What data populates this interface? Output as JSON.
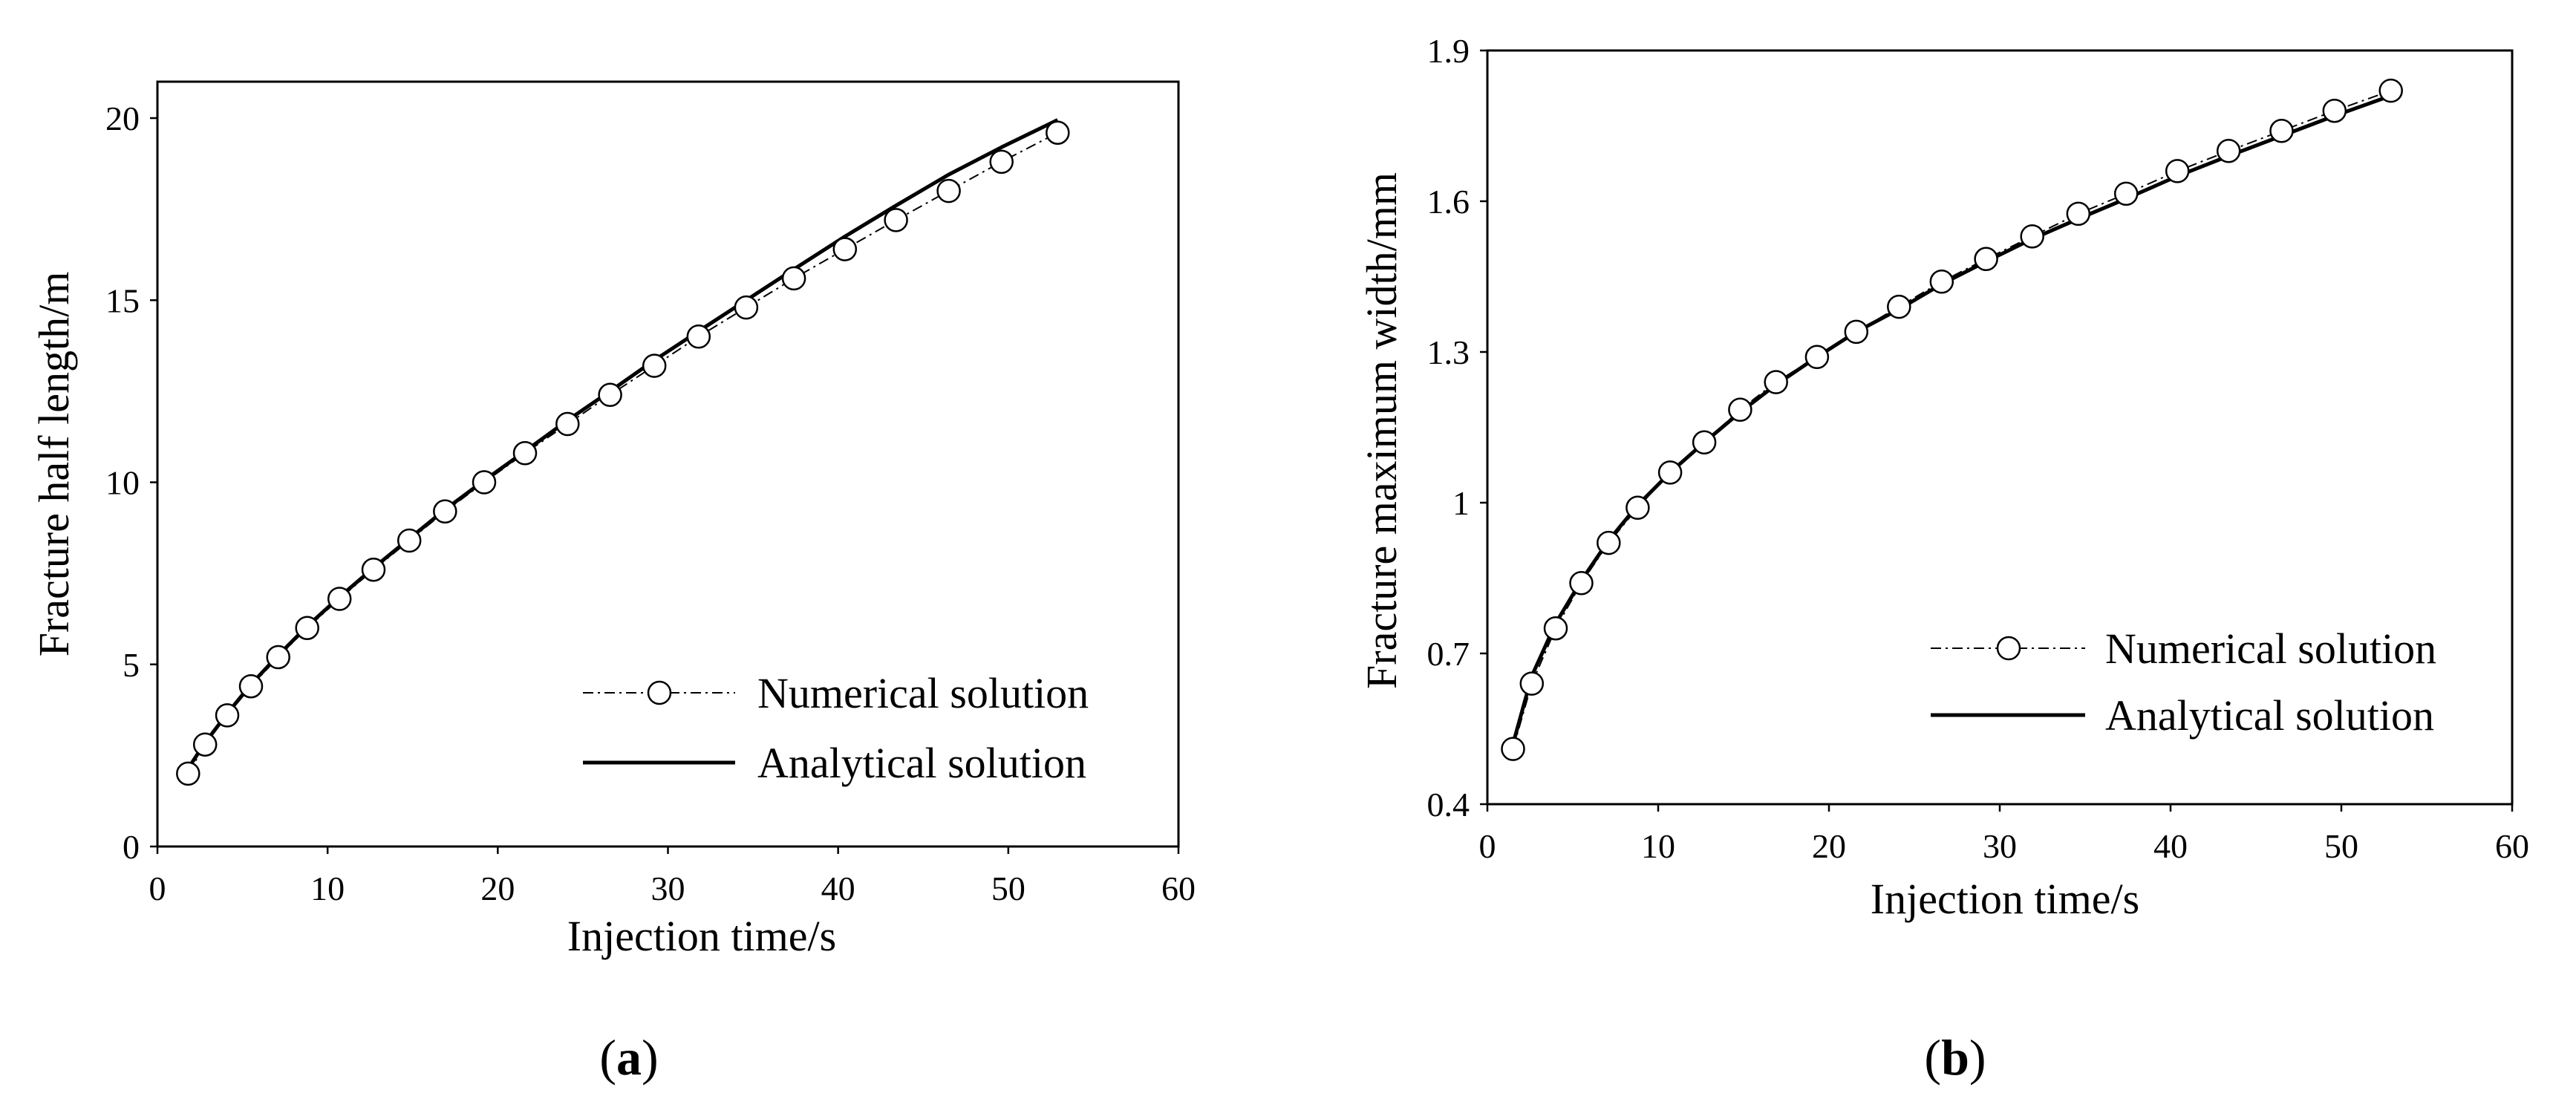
{
  "colors": {
    "line": "#000000",
    "marker_fill": "#ffffff",
    "background": "#ffffff"
  },
  "panel_labels": [
    {
      "open": "(",
      "letter": "a",
      "close": ")"
    },
    {
      "open": "(",
      "letter": "b",
      "close": ")"
    }
  ],
  "chart_data": [
    {
      "type": "line",
      "xlabel": "Injection time/s",
      "ylabel": "Fracture half length/m",
      "xlim": [
        0,
        60
      ],
      "ylim": [
        0,
        21
      ],
      "xticks": [
        0,
        10,
        20,
        30,
        40,
        50,
        60
      ],
      "yticks": [
        0,
        5,
        10,
        15,
        20
      ],
      "grid": false,
      "legend_position": "bottom-right",
      "series": [
        {
          "name": "Numerical solution",
          "style": "dash-dot line with open circle markers",
          "x": [
            1.8,
            2.8,
            4.1,
            5.5,
            7.1,
            8.8,
            10.7,
            12.7,
            14.8,
            16.9,
            19.2,
            21.6,
            24.1,
            26.6,
            29.2,
            31.8,
            34.6,
            37.4,
            40.4,
            43.4,
            46.5,
            49.6,
            52.9
          ],
          "y": [
            2.0,
            2.8,
            3.6,
            4.4,
            5.2,
            6.0,
            6.8,
            7.6,
            8.4,
            9.2,
            10.0,
            10.8,
            11.6,
            12.4,
            13.2,
            14.0,
            14.8,
            15.6,
            16.4,
            17.2,
            18.0,
            18.8,
            19.6
          ]
        },
        {
          "name": "Analytical solution",
          "style": "solid line",
          "x": [
            1.6,
            2.8,
            4.1,
            5.5,
            7.1,
            8.8,
            10.7,
            12.7,
            14.8,
            16.9,
            19.2,
            21.6,
            24.1,
            26.6,
            29.2,
            31.8,
            34.6,
            37.4,
            40.4,
            43.4,
            46.5,
            49.6,
            52.9
          ],
          "y": [
            2.0,
            2.85,
            3.65,
            4.45,
            5.25,
            6.05,
            6.85,
            7.65,
            8.45,
            9.25,
            10.05,
            10.85,
            11.7,
            12.5,
            13.35,
            14.15,
            15.0,
            15.85,
            16.75,
            17.6,
            18.45,
            19.2,
            19.95
          ]
        }
      ]
    },
    {
      "type": "line",
      "xlabel": "Injection time/s",
      "ylabel": "Fracture maximum width/mm",
      "xlim": [
        0,
        60
      ],
      "ylim": [
        0.4,
        1.9
      ],
      "xticks": [
        0,
        10,
        20,
        30,
        40,
        50,
        60
      ],
      "yticks": [
        "0.4",
        "0.7",
        "1",
        "1.3",
        "1.6",
        "1.9"
      ],
      "grid": false,
      "legend_position": "bottom-right",
      "series": [
        {
          "name": "Numerical solution",
          "style": "dash-dot line with open circle markers",
          "x": [
            1.5,
            2.6,
            4.0,
            5.5,
            7.1,
            8.8,
            10.7,
            12.7,
            14.8,
            16.9,
            19.3,
            21.6,
            24.1,
            26.6,
            29.2,
            31.9,
            34.6,
            37.4,
            40.4,
            43.4,
            46.5,
            49.6,
            52.9
          ],
          "y": [
            0.51,
            0.64,
            0.75,
            0.84,
            0.92,
            0.99,
            1.06,
            1.12,
            1.185,
            1.24,
            1.29,
            1.34,
            1.39,
            1.44,
            1.485,
            1.53,
            1.575,
            1.615,
            1.66,
            1.7,
            1.74,
            1.78,
            1.82
          ]
        },
        {
          "name": "Analytical solution",
          "style": "solid line",
          "x": [
            1.5,
            2.6,
            4.0,
            5.5,
            7.1,
            8.8,
            10.7,
            12.7,
            14.8,
            16.9,
            19.3,
            21.6,
            24.1,
            26.6,
            29.2,
            31.9,
            34.6,
            37.4,
            40.4,
            43.4,
            46.5,
            49.6,
            52.9
          ],
          "y": [
            0.52,
            0.655,
            0.76,
            0.845,
            0.925,
            0.995,
            1.06,
            1.12,
            1.18,
            1.235,
            1.29,
            1.34,
            1.385,
            1.435,
            1.48,
            1.525,
            1.565,
            1.605,
            1.65,
            1.69,
            1.73,
            1.77,
            1.81
          ]
        }
      ]
    }
  ]
}
